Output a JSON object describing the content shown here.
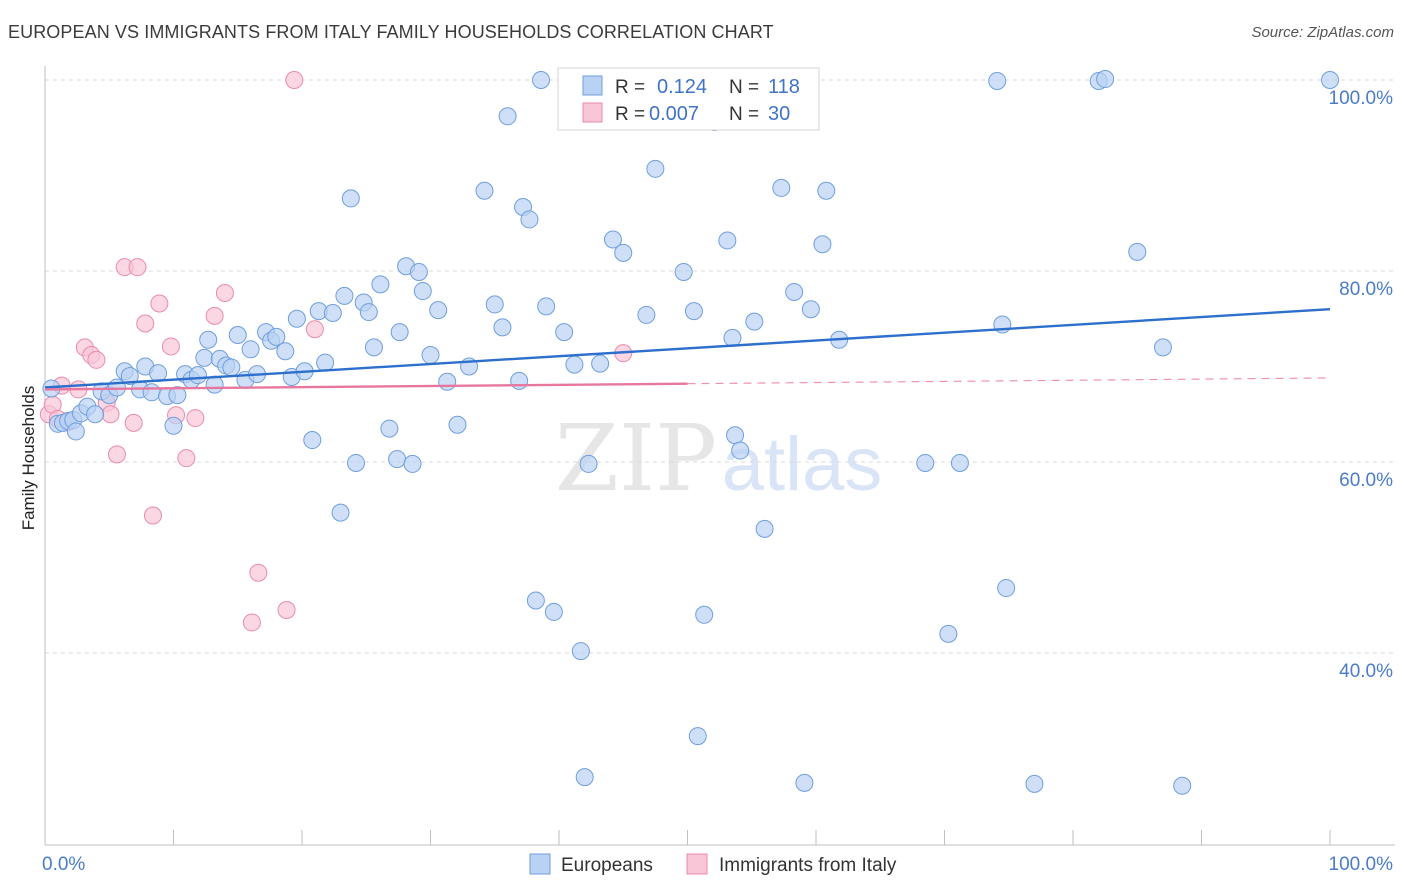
{
  "title": "EUROPEAN VS IMMIGRANTS FROM ITALY FAMILY HOUSEHOLDS CORRELATION CHART",
  "source": "Source: ZipAtlas.com",
  "watermark": {
    "zip": "ZIP",
    "atlas": "atlas"
  },
  "colors": {
    "blue_fill": "#b9d2f3",
    "blue_stroke": "#6f9fdf",
    "blue_line": "#2d6fcc",
    "pink_fill": "#f9c6d7",
    "pink_stroke": "#ea8bab",
    "pink_line": "#e8779f",
    "tick_text": "#4a7cc9",
    "grid": "#d9d9d9"
  },
  "stats": {
    "europeans": {
      "r_label": "R =",
      "r": "0.124",
      "n_label": "N =",
      "n": "118"
    },
    "italy": {
      "r_label": "R =",
      "r": "0.007",
      "n_label": "N =",
      "n": "30"
    }
  },
  "chart_data": {
    "type": "scatter",
    "title": "EUROPEAN VS IMMIGRANTS FROM ITALY FAMILY HOUSEHOLDS CORRELATION CHART",
    "xlabel": "",
    "ylabel": "Family Households",
    "xlim": [
      0,
      100
    ],
    "ylim": [
      20,
      102
    ],
    "x_tick_labels": [
      "0.0%",
      "100.0%"
    ],
    "y_ticks": [
      {
        "value": 40,
        "label": "40.0%"
      },
      {
        "value": 60,
        "label": "60.0%"
      },
      {
        "value": 80,
        "label": "80.0%"
      },
      {
        "value": 100,
        "label": "100.0%"
      }
    ],
    "legend": [
      "Europeans",
      "Immigrants from Italy"
    ],
    "series": [
      {
        "name": "Europeans",
        "trend": {
          "x0": 0,
          "y0": 67.8,
          "x1": 100,
          "y1": 76.0,
          "dashed_from": null
        },
        "points": [
          [
            0.5,
            67.7
          ],
          [
            1.0,
            64.0
          ],
          [
            1.4,
            64.1
          ],
          [
            1.8,
            64.3
          ],
          [
            2.2,
            64.4
          ],
          [
            2.4,
            63.2
          ],
          [
            2.8,
            65.1
          ],
          [
            3.3,
            65.8
          ],
          [
            3.9,
            65.0
          ],
          [
            4.4,
            67.4
          ],
          [
            5.0,
            67.0
          ],
          [
            5.6,
            67.8
          ],
          [
            6.2,
            69.5
          ],
          [
            6.6,
            69.0
          ],
          [
            7.4,
            67.6
          ],
          [
            7.8,
            70.0
          ],
          [
            8.3,
            67.3
          ],
          [
            8.8,
            69.3
          ],
          [
            9.5,
            66.9
          ],
          [
            10.0,
            63.8
          ],
          [
            10.3,
            67.0
          ],
          [
            10.9,
            69.2
          ],
          [
            11.4,
            68.6
          ],
          [
            11.9,
            69.1
          ],
          [
            12.4,
            70.9
          ],
          [
            12.7,
            72.8
          ],
          [
            13.2,
            68.1
          ],
          [
            13.6,
            70.8
          ],
          [
            14.1,
            70.1
          ],
          [
            14.5,
            69.9
          ],
          [
            15.0,
            73.3
          ],
          [
            15.6,
            68.6
          ],
          [
            16.0,
            71.8
          ],
          [
            16.5,
            69.2
          ],
          [
            17.2,
            73.6
          ],
          [
            17.6,
            72.7
          ],
          [
            18.0,
            73.1
          ],
          [
            18.7,
            71.6
          ],
          [
            19.2,
            68.9
          ],
          [
            19.6,
            75.0
          ],
          [
            20.2,
            69.5
          ],
          [
            20.8,
            62.3
          ],
          [
            21.3,
            75.8
          ],
          [
            21.8,
            70.4
          ],
          [
            22.4,
            75.6
          ],
          [
            23.0,
            54.7
          ],
          [
            23.3,
            77.4
          ],
          [
            23.8,
            87.6
          ],
          [
            24.2,
            59.9
          ],
          [
            24.8,
            76.7
          ],
          [
            25.2,
            75.7
          ],
          [
            25.6,
            72.0
          ],
          [
            26.1,
            78.6
          ],
          [
            26.8,
            63.5
          ],
          [
            27.4,
            60.3
          ],
          [
            27.6,
            73.6
          ],
          [
            28.1,
            80.5
          ],
          [
            28.6,
            59.8
          ],
          [
            29.1,
            79.9
          ],
          [
            29.4,
            77.9
          ],
          [
            30.0,
            71.2
          ],
          [
            30.6,
            75.9
          ],
          [
            31.3,
            68.4
          ],
          [
            32.1,
            63.9
          ],
          [
            33.0,
            70.0
          ],
          [
            34.2,
            88.4
          ],
          [
            35.0,
            76.5
          ],
          [
            35.6,
            74.1
          ],
          [
            36.0,
            96.2
          ],
          [
            36.9,
            68.5
          ],
          [
            37.2,
            86.7
          ],
          [
            37.7,
            85.4
          ],
          [
            38.2,
            45.5
          ],
          [
            38.6,
            100.0
          ],
          [
            39.0,
            76.3
          ],
          [
            39.6,
            44.3
          ],
          [
            40.4,
            73.6
          ],
          [
            41.2,
            70.2
          ],
          [
            41.7,
            40.2
          ],
          [
            42.0,
            27.0
          ],
          [
            42.3,
            59.8
          ],
          [
            43.2,
            70.3
          ],
          [
            44.2,
            83.3
          ],
          [
            45.0,
            81.9
          ],
          [
            46.8,
            75.4
          ],
          [
            47.5,
            90.7
          ],
          [
            48.3,
            100.0
          ],
          [
            49.7,
            79.9
          ],
          [
            50.5,
            75.8
          ],
          [
            50.8,
            31.3
          ],
          [
            51.3,
            44.0
          ],
          [
            52.1,
            95.6
          ],
          [
            53.1,
            83.2
          ],
          [
            53.5,
            73.0
          ],
          [
            53.7,
            62.8
          ],
          [
            54.1,
            61.2
          ],
          [
            55.2,
            74.7
          ],
          [
            56.0,
            53.0
          ],
          [
            57.3,
            88.7
          ],
          [
            58.3,
            77.8
          ],
          [
            59.1,
            26.4
          ],
          [
            59.6,
            76.0
          ],
          [
            60.5,
            82.8
          ],
          [
            60.8,
            88.4
          ],
          [
            61.8,
            72.8
          ],
          [
            68.5,
            59.9
          ],
          [
            70.3,
            42.0
          ],
          [
            71.2,
            59.9
          ],
          [
            74.1,
            99.9
          ],
          [
            74.5,
            74.4
          ],
          [
            74.8,
            46.8
          ],
          [
            77.0,
            26.3
          ],
          [
            82.0,
            99.9
          ],
          [
            82.5,
            100.1
          ],
          [
            85.0,
            82.0
          ],
          [
            87.0,
            72.0
          ],
          [
            88.5,
            26.1
          ],
          [
            100.0,
            100.0
          ]
        ]
      },
      {
        "name": "Immigrants from Italy",
        "trend": {
          "x0": 0,
          "y0": 67.6,
          "x1": 100,
          "y1": 68.8,
          "dashed_from": 50
        },
        "points": [
          [
            0.3,
            65.0
          ],
          [
            0.6,
            66.0
          ],
          [
            1.0,
            64.5
          ],
          [
            1.3,
            68.0
          ],
          [
            1.8,
            64.2
          ],
          [
            2.6,
            67.6
          ],
          [
            3.1,
            72.0
          ],
          [
            3.6,
            71.2
          ],
          [
            4.0,
            70.7
          ],
          [
            4.8,
            66.2
          ],
          [
            5.1,
            65.0
          ],
          [
            5.6,
            60.8
          ],
          [
            6.2,
            80.4
          ],
          [
            6.9,
            64.1
          ],
          [
            7.2,
            80.4
          ],
          [
            7.8,
            74.5
          ],
          [
            8.4,
            54.4
          ],
          [
            8.9,
            76.6
          ],
          [
            9.8,
            72.1
          ],
          [
            10.2,
            64.9
          ],
          [
            11.0,
            60.4
          ],
          [
            11.7,
            64.6
          ],
          [
            13.2,
            75.3
          ],
          [
            14.0,
            77.7
          ],
          [
            16.1,
            43.2
          ],
          [
            16.6,
            48.4
          ],
          [
            18.8,
            44.5
          ],
          [
            19.4,
            100.0
          ],
          [
            21.0,
            73.9
          ],
          [
            45.0,
            71.4
          ]
        ]
      }
    ]
  }
}
